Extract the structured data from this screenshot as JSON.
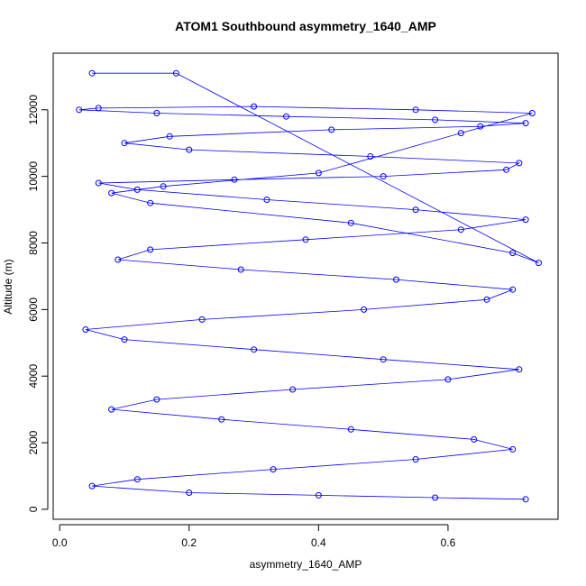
{
  "chart_data": {
    "type": "scatter",
    "title": "ATOM1 Southbound asymmetry_1640_AMP",
    "xlabel": "asymmetry_1640_AMP",
    "ylabel": "Altitude (m)",
    "xlim": [
      -0.01,
      0.77
    ],
    "ylim": [
      -300,
      13700
    ],
    "x_ticks": [
      0.0,
      0.2,
      0.4,
      0.6
    ],
    "x_tick_labels": [
      "0.0",
      "0.2",
      "0.4",
      "0.6"
    ],
    "y_ticks": [
      0,
      2000,
      4000,
      6000,
      8000,
      10000,
      12000
    ],
    "y_tick_labels": [
      "0",
      "2000",
      "4000",
      "6000",
      "8000",
      "10000",
      "12000"
    ],
    "series": [
      {
        "color": "#0000ff",
        "marker": "open-circle",
        "connected": true,
        "x": [
          0.72,
          0.58,
          0.4,
          0.2,
          0.05,
          0.12,
          0.33,
          0.55,
          0.7,
          0.64,
          0.45,
          0.25,
          0.08,
          0.15,
          0.36,
          0.6,
          0.71,
          0.5,
          0.3,
          0.1,
          0.04,
          0.22,
          0.47,
          0.66,
          0.7,
          0.52,
          0.28,
          0.09,
          0.14,
          0.38,
          0.62,
          0.72,
          0.55,
          0.32,
          0.12,
          0.06,
          0.27,
          0.5,
          0.69,
          0.71,
          0.48,
          0.2,
          0.1,
          0.17,
          0.42,
          0.65,
          0.72,
          0.58,
          0.35,
          0.15,
          0.03,
          0.06,
          0.3,
          0.55,
          0.73,
          0.62,
          0.4,
          0.16,
          0.08,
          0.14,
          0.45,
          0.7,
          0.74,
          0.18,
          0.05
        ],
        "y": [
          300,
          350,
          420,
          500,
          700,
          900,
          1200,
          1500,
          1800,
          2100,
          2400,
          2700,
          3000,
          3300,
          3600,
          3900,
          4200,
          4500,
          4800,
          5100,
          5400,
          5700,
          6000,
          6300,
          6600,
          6900,
          7200,
          7500,
          7800,
          8100,
          8400,
          8700,
          9000,
          9300,
          9600,
          9800,
          9900,
          10000,
          10200,
          10400,
          10600,
          10800,
          11000,
          11200,
          11400,
          11500,
          11600,
          11700,
          11800,
          11900,
          12000,
          12050,
          12100,
          12000,
          11900,
          11300,
          10100,
          9700,
          9500,
          9200,
          8600,
          7700,
          7400,
          13100,
          13100
        ]
      }
    ]
  }
}
